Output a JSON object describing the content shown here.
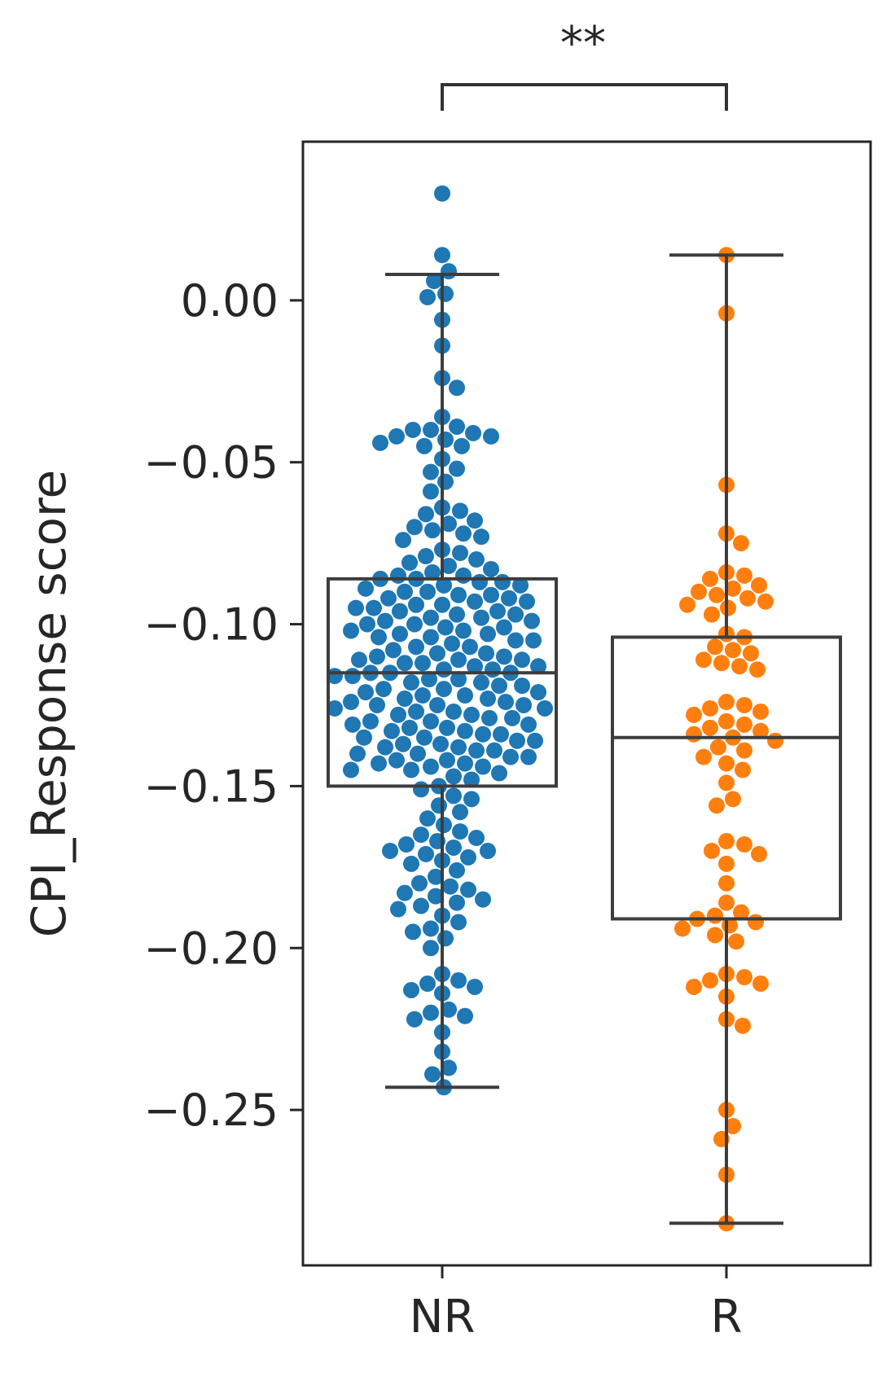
{
  "chart_data": {
    "type": "box+swarm",
    "title": "",
    "xlabel": "",
    "ylabel": "CPI_Response score",
    "ylim": [
      -0.298,
      0.049
    ],
    "yticks": [
      0.0,
      -0.05,
      -0.1,
      -0.15,
      -0.2,
      -0.25
    ],
    "ytick_labels": [
      "0.00",
      "−0.05",
      "−0.10",
      "−0.15",
      "−0.20",
      "−0.25"
    ],
    "categories": [
      "NR",
      "R"
    ],
    "grid": false,
    "significance": {
      "between": [
        "NR",
        "R"
      ],
      "label": "**"
    },
    "series": [
      {
        "name": "NR",
        "color": "#1f77b4",
        "box": {
          "whisker_low": -0.243,
          "q1": -0.15,
          "median": -0.115,
          "q3": -0.086,
          "whisker_high": 0.008
        },
        "values": [
          0.033,
          0.014,
          0.009,
          0.006,
          0.002,
          0.001,
          -0.006,
          -0.014,
          -0.024,
          -0.027,
          -0.036,
          -0.039,
          -0.04,
          -0.04,
          -0.041,
          -0.042,
          -0.042,
          -0.043,
          -0.044,
          -0.045,
          -0.045,
          -0.049,
          -0.052,
          -0.053,
          -0.056,
          -0.059,
          -0.064,
          -0.065,
          -0.066,
          -0.068,
          -0.069,
          -0.07,
          -0.071,
          -0.072,
          -0.073,
          -0.074,
          -0.077,
          -0.078,
          -0.079,
          -0.08,
          -0.081,
          -0.082,
          -0.083,
          -0.084,
          -0.085,
          -0.085,
          -0.086,
          -0.086,
          -0.087,
          -0.087,
          -0.088,
          -0.088,
          -0.089,
          -0.09,
          -0.09,
          -0.091,
          -0.091,
          -0.092,
          -0.092,
          -0.093,
          -0.093,
          -0.094,
          -0.094,
          -0.095,
          -0.095,
          -0.096,
          -0.096,
          -0.097,
          -0.097,
          -0.098,
          -0.098,
          -0.099,
          -0.099,
          -0.1,
          -0.1,
          -0.101,
          -0.101,
          -0.102,
          -0.102,
          -0.103,
          -0.103,
          -0.104,
          -0.104,
          -0.105,
          -0.105,
          -0.106,
          -0.107,
          -0.107,
          -0.108,
          -0.109,
          -0.109,
          -0.11,
          -0.11,
          -0.111,
          -0.111,
          -0.111,
          -0.112,
          -0.112,
          -0.113,
          -0.113,
          -0.114,
          -0.114,
          -0.115,
          -0.115,
          -0.115,
          -0.116,
          -0.116,
          -0.117,
          -0.117,
          -0.118,
          -0.118,
          -0.119,
          -0.119,
          -0.12,
          -0.12,
          -0.121,
          -0.121,
          -0.122,
          -0.122,
          -0.123,
          -0.123,
          -0.124,
          -0.124,
          -0.125,
          -0.125,
          -0.125,
          -0.126,
          -0.126,
          -0.127,
          -0.127,
          -0.128,
          -0.128,
          -0.129,
          -0.129,
          -0.13,
          -0.13,
          -0.131,
          -0.131,
          -0.132,
          -0.132,
          -0.133,
          -0.133,
          -0.134,
          -0.134,
          -0.135,
          -0.135,
          -0.136,
          -0.136,
          -0.137,
          -0.137,
          -0.138,
          -0.138,
          -0.139,
          -0.139,
          -0.14,
          -0.14,
          -0.141,
          -0.141,
          -0.142,
          -0.142,
          -0.143,
          -0.143,
          -0.144,
          -0.144,
          -0.145,
          -0.145,
          -0.146,
          -0.147,
          -0.148,
          -0.15,
          -0.151,
          -0.153,
          -0.154,
          -0.156,
          -0.158,
          -0.16,
          -0.162,
          -0.164,
          -0.165,
          -0.166,
          -0.167,
          -0.168,
          -0.169,
          -0.17,
          -0.17,
          -0.171,
          -0.172,
          -0.173,
          -0.174,
          -0.176,
          -0.178,
          -0.18,
          -0.181,
          -0.182,
          -0.183,
          -0.184,
          -0.185,
          -0.186,
          -0.187,
          -0.188,
          -0.19,
          -0.192,
          -0.194,
          -0.195,
          -0.197,
          -0.2,
          -0.208,
          -0.21,
          -0.211,
          -0.212,
          -0.213,
          -0.214,
          -0.219,
          -0.22,
          -0.221,
          -0.222,
          -0.226,
          -0.232,
          -0.237,
          -0.239,
          -0.243
        ]
      },
      {
        "name": "R",
        "color": "#ff7f0e",
        "box": {
          "whisker_low": -0.285,
          "q1": -0.191,
          "median": -0.135,
          "q3": -0.104,
          "whisker_high": 0.014
        },
        "values": [
          0.014,
          -0.004,
          -0.057,
          -0.072,
          -0.075,
          -0.084,
          -0.085,
          -0.086,
          -0.088,
          -0.089,
          -0.09,
          -0.091,
          -0.092,
          -0.093,
          -0.094,
          -0.095,
          -0.097,
          -0.103,
          -0.104,
          -0.107,
          -0.108,
          -0.109,
          -0.111,
          -0.112,
          -0.113,
          -0.114,
          -0.124,
          -0.125,
          -0.126,
          -0.127,
          -0.128,
          -0.13,
          -0.131,
          -0.132,
          -0.133,
          -0.134,
          -0.135,
          -0.136,
          -0.138,
          -0.139,
          -0.141,
          -0.143,
          -0.145,
          -0.149,
          -0.154,
          -0.156,
          -0.167,
          -0.168,
          -0.17,
          -0.171,
          -0.174,
          -0.18,
          -0.186,
          -0.189,
          -0.19,
          -0.191,
          -0.192,
          -0.193,
          -0.194,
          -0.196,
          -0.198,
          -0.208,
          -0.209,
          -0.21,
          -0.211,
          -0.212,
          -0.215,
          -0.222,
          -0.224,
          -0.25,
          -0.255,
          -0.259,
          -0.27,
          -0.285
        ]
      }
    ]
  }
}
